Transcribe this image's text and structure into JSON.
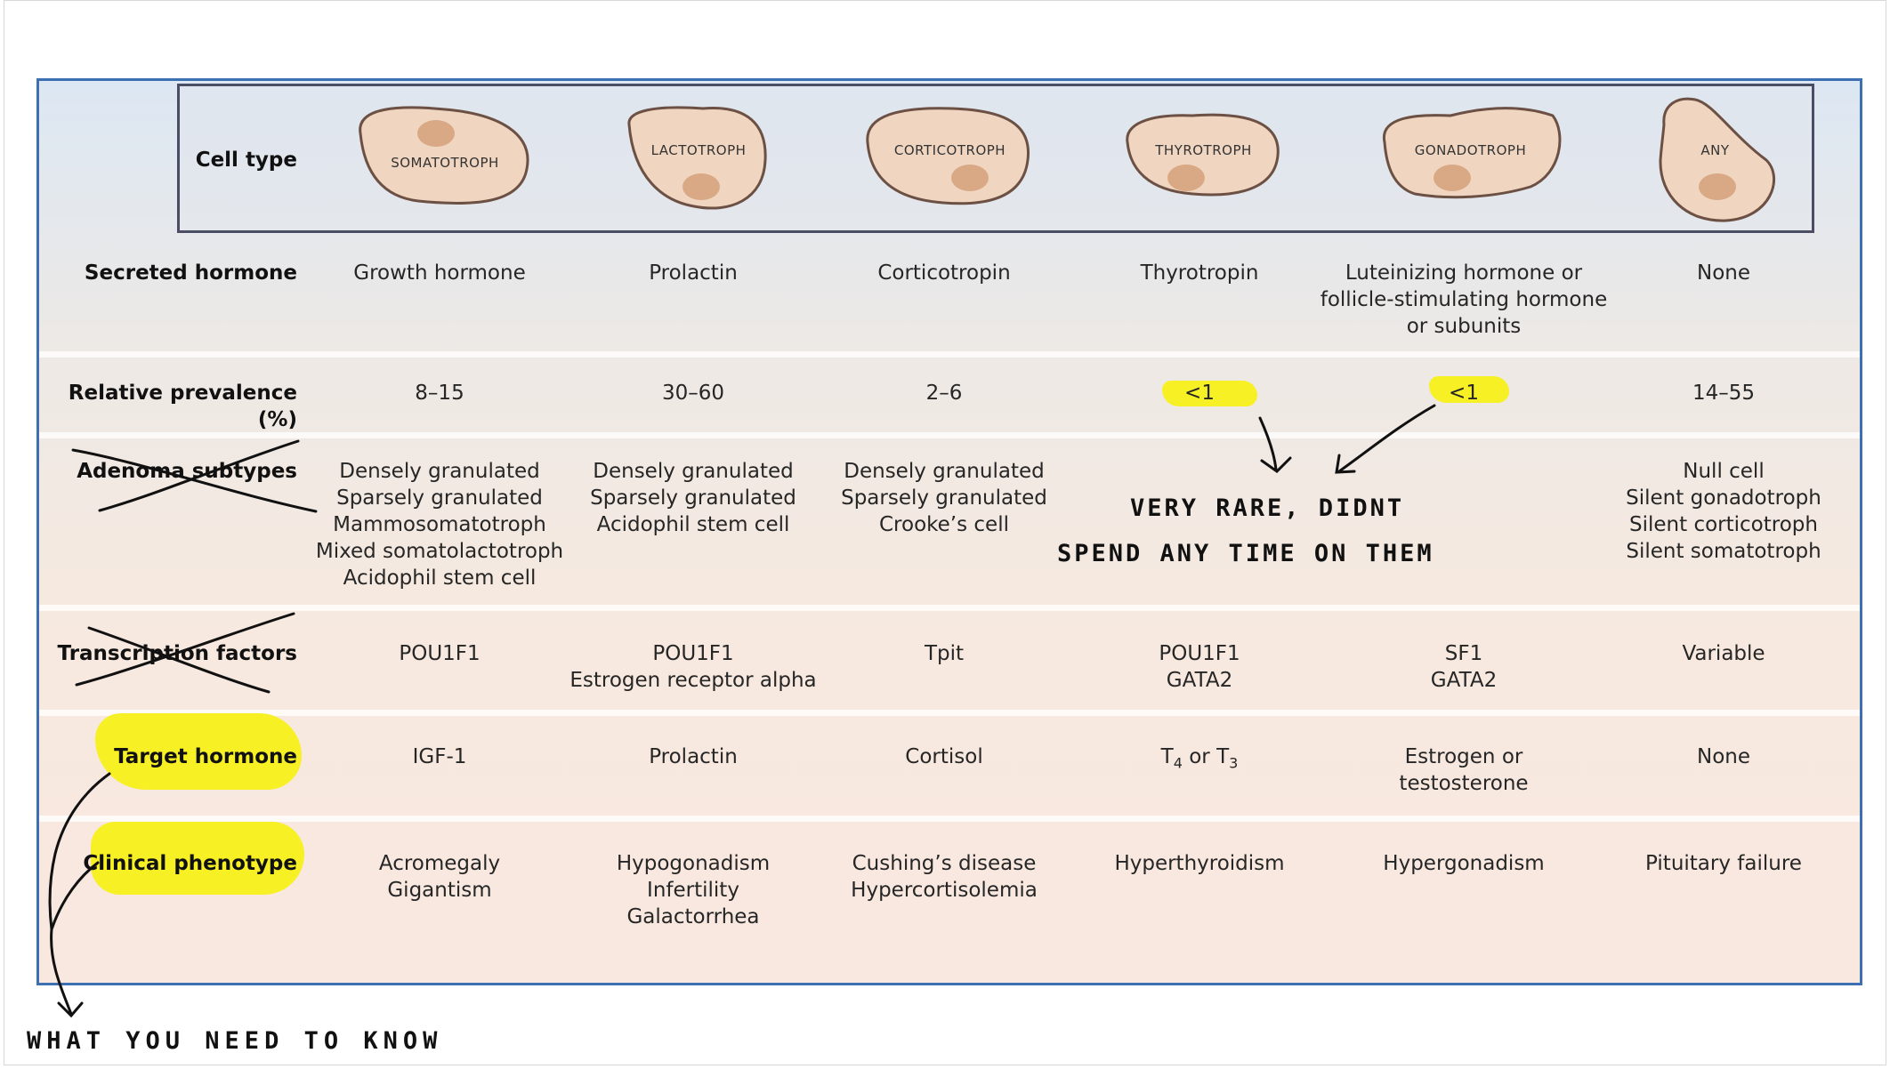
{
  "colors": {
    "accent_border": "#3d6fb3",
    "highlight": "#f6f024",
    "cell_fill": "#f0d6c1",
    "nucleus_fill": "#d9a985"
  },
  "row_labels": {
    "cell_type": "Cell type",
    "secreted": "Secreted hormone",
    "prevalence": "Relative prevalence (%)",
    "subtypes": "Adenoma subtypes",
    "transcription": "Transcription factors",
    "target": "Target hormone",
    "phenotype": "Clinical phenotype"
  },
  "cells": [
    "SOMATOTROPH",
    "LACTOTROPH",
    "CORTICOTROPH",
    "THYROTROPH",
    "GONADOTROPH",
    "ANY"
  ],
  "secreted": {
    "c1": "Growth hormone",
    "c2": "Prolactin",
    "c3": "Corticotropin",
    "c4": "Thyrotropin",
    "c5": [
      "Luteinizing hormone or",
      "follicle-stimulating hormone",
      "or subunits"
    ],
    "c6": "None"
  },
  "prevalence": {
    "c1": "8–15",
    "c2": "30–60",
    "c3": "2–6",
    "c4": "<1",
    "c5": "<1",
    "c6": "14–55"
  },
  "subtypes": {
    "c1": [
      "Densely granulated",
      "Sparsely granulated",
      "Mammosomatotroph",
      "Mixed somatolactotroph",
      "Acidophil stem cell"
    ],
    "c2": [
      "Densely granulated",
      "Sparsely granulated",
      "Acidophil stem cell"
    ],
    "c3": [
      "Densely granulated",
      "Sparsely granulated",
      "Crooke’s cell"
    ],
    "c6": [
      "Null cell",
      "Silent gonadotroph",
      "Silent corticotroph",
      "Silent somatotroph"
    ]
  },
  "transcription": {
    "c1": "POU1F1",
    "c2": [
      "POU1F1",
      "Estrogen receptor alpha"
    ],
    "c3": "Tpit",
    "c4": [
      "POU1F1",
      "GATA2"
    ],
    "c5": [
      "SF1",
      "GATA2"
    ],
    "c6": "Variable"
  },
  "target": {
    "c1": "IGF-1",
    "c2": "Prolactin",
    "c3": "Cortisol",
    "c4": {
      "t": "T",
      "sub1": "4",
      "mid": " or T",
      "sub2": "3"
    },
    "c5": [
      "Estrogen or",
      "testosterone"
    ],
    "c6": "None"
  },
  "phenotype": {
    "c1": [
      "Acromegaly",
      "Gigantism"
    ],
    "c2": [
      "Hypogonadism",
      "Infertility",
      "Galactorrhea"
    ],
    "c3": [
      "Cushing’s disease",
      "Hypercortisolemia"
    ],
    "c4": "Hyperthyroidism",
    "c5": "Hypergonadism",
    "c6": "Pituitary failure"
  },
  "annotations": {
    "rare_line1": "VERY RARE, DIDNT",
    "rare_line2": "SPEND ANY TIME ON THEM",
    "need": "WHAT YOU NEED TO KNOW"
  }
}
